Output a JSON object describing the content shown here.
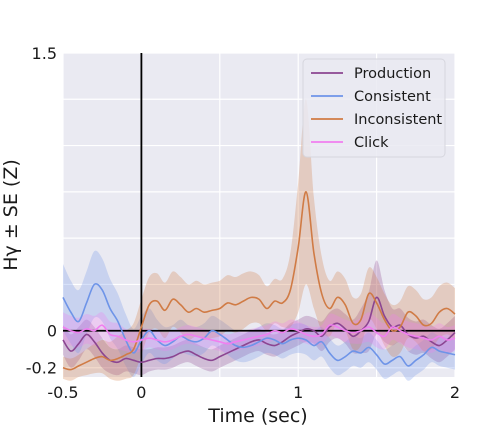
{
  "chart_data": {
    "type": "line",
    "xlabel": "Time (sec)",
    "ylabel": "Hγ ± SE (Z)",
    "xlim": [
      -0.5,
      2
    ],
    "ylim": [
      -0.25,
      1.5
    ],
    "xticks": [
      {
        "value": -0.5,
        "label": "-0.5"
      },
      {
        "value": 0,
        "label": "0"
      },
      {
        "value": 1,
        "label": "1"
      },
      {
        "value": 2,
        "label": "2"
      }
    ],
    "yticks": [
      {
        "value": 1.5,
        "label": "1.5"
      },
      {
        "value": 0,
        "label": "0"
      },
      {
        "value": -0.2,
        "label": "-0.2"
      }
    ],
    "grid": true,
    "legend_position": "top-right",
    "vlines": [
      0
    ],
    "hlines": [
      0
    ],
    "x": [
      -0.5,
      -0.45,
      -0.4,
      -0.35,
      -0.3,
      -0.25,
      -0.2,
      -0.15,
      -0.1,
      -0.05,
      0,
      0.05,
      0.1,
      0.15,
      0.2,
      0.25,
      0.3,
      0.35,
      0.4,
      0.45,
      0.5,
      0.55,
      0.6,
      0.65,
      0.7,
      0.75,
      0.8,
      0.85,
      0.9,
      0.95,
      1,
      1.05,
      1.1,
      1.15,
      1.2,
      1.25,
      1.3,
      1.35,
      1.4,
      1.45,
      1.5,
      1.55,
      1.6,
      1.65,
      1.7,
      1.75,
      1.8,
      1.85,
      1.9,
      1.95,
      2
    ],
    "series": [
      {
        "name": "Production",
        "color": "#8b4591",
        "values": [
          -0.05,
          -0.11,
          -0.07,
          -0.02,
          -0.06,
          -0.12,
          -0.16,
          -0.17,
          -0.15,
          -0.16,
          -0.17,
          -0.16,
          -0.15,
          -0.15,
          -0.14,
          -0.12,
          -0.11,
          -0.13,
          -0.15,
          -0.16,
          -0.14,
          -0.12,
          -0.1,
          -0.08,
          -0.06,
          -0.05,
          -0.07,
          -0.08,
          -0.06,
          -0.03,
          -0.01,
          0.01,
          0.0,
          -0.03,
          0.02,
          0.04,
          0.01,
          -0.03,
          0.0,
          0.05,
          0.18,
          0.08,
          0.02,
          0.03,
          -0.02,
          -0.04,
          -0.03,
          -0.06,
          -0.08,
          -0.05,
          -0.01
        ],
        "band": [
          0.08,
          0.09,
          0.09,
          0.08,
          0.08,
          0.08,
          0.07,
          0.07,
          0.07,
          0.07,
          0.07,
          0.06,
          0.06,
          0.06,
          0.06,
          0.06,
          0.06,
          0.06,
          0.06,
          0.06,
          0.06,
          0.06,
          0.06,
          0.06,
          0.06,
          0.06,
          0.06,
          0.06,
          0.06,
          0.07,
          0.07,
          0.07,
          0.07,
          0.08,
          0.08,
          0.08,
          0.08,
          0.09,
          0.12,
          0.16,
          0.2,
          0.14,
          0.1,
          0.09,
          0.09,
          0.09,
          0.09,
          0.09,
          0.09,
          0.09,
          0.09
        ]
      },
      {
        "name": "Consistent",
        "color": "#6e94e8",
        "values": [
          0.18,
          0.1,
          0.05,
          0.15,
          0.25,
          0.22,
          0.12,
          0.05,
          -0.05,
          -0.12,
          -0.05,
          0.0,
          -0.05,
          -0.08,
          -0.06,
          -0.03,
          -0.05,
          -0.06,
          -0.04,
          0.0,
          -0.02,
          -0.05,
          -0.08,
          -0.09,
          -0.08,
          -0.06,
          -0.04,
          -0.05,
          -0.07,
          -0.05,
          -0.04,
          -0.05,
          -0.08,
          -0.06,
          -0.12,
          -0.16,
          -0.14,
          -0.11,
          -0.12,
          -0.09,
          -0.13,
          -0.18,
          -0.16,
          -0.14,
          -0.19,
          -0.16,
          -0.13,
          -0.09,
          -0.11,
          -0.12,
          -0.13
        ],
        "band": [
          0.18,
          0.17,
          0.17,
          0.17,
          0.18,
          0.17,
          0.16,
          0.15,
          0.14,
          0.13,
          0.13,
          0.12,
          0.11,
          0.1,
          0.09,
          0.09,
          0.08,
          0.08,
          0.08,
          0.08,
          0.08,
          0.08,
          0.08,
          0.08,
          0.08,
          0.08,
          0.08,
          0.08,
          0.08,
          0.08,
          0.08,
          0.08,
          0.08,
          0.08,
          0.08,
          0.08,
          0.08,
          0.08,
          0.08,
          0.08,
          0.08,
          0.08,
          0.08,
          0.08,
          0.08,
          0.08,
          0.08,
          0.08,
          0.08,
          0.08,
          0.08
        ]
      },
      {
        "name": "Inconsistent",
        "color": "#d07b45",
        "values": [
          -0.2,
          -0.21,
          -0.19,
          -0.17,
          -0.15,
          -0.14,
          -0.16,
          -0.15,
          -0.13,
          -0.1,
          0.02,
          0.14,
          0.16,
          0.11,
          0.17,
          0.14,
          0.1,
          0.12,
          0.1,
          0.11,
          0.12,
          0.15,
          0.14,
          0.16,
          0.18,
          0.17,
          0.12,
          0.16,
          0.15,
          0.22,
          0.45,
          0.75,
          0.42,
          0.2,
          0.12,
          0.18,
          0.14,
          0.04,
          0.06,
          0.2,
          0.15,
          0.06,
          0.0,
          0.02,
          0.1,
          0.08,
          0.03,
          0.04,
          0.1,
          0.12,
          0.09
        ],
        "band": [
          0.06,
          0.06,
          0.06,
          0.07,
          0.08,
          0.09,
          0.1,
          0.12,
          0.13,
          0.14,
          0.15,
          0.15,
          0.15,
          0.15,
          0.15,
          0.15,
          0.15,
          0.15,
          0.15,
          0.15,
          0.15,
          0.15,
          0.15,
          0.15,
          0.14,
          0.13,
          0.12,
          0.12,
          0.13,
          0.2,
          0.35,
          0.5,
          0.3,
          0.2,
          0.15,
          0.14,
          0.14,
          0.14,
          0.14,
          0.14,
          0.14,
          0.14,
          0.14,
          0.14,
          0.14,
          0.14,
          0.14,
          0.14,
          0.14,
          0.14,
          0.14
        ]
      },
      {
        "name": "Click",
        "color": "#f07ff0",
        "values": [
          0.02,
          0.0,
          -0.01,
          0.01,
          0.0,
          0.03,
          -0.02,
          -0.03,
          -0.05,
          -0.06,
          -0.05,
          -0.04,
          -0.05,
          -0.06,
          -0.05,
          -0.03,
          -0.02,
          -0.03,
          -0.04,
          -0.05,
          -0.06,
          -0.07,
          -0.06,
          -0.05,
          -0.04,
          -0.03,
          -0.02,
          0.0,
          -0.01,
          0.01,
          0.0,
          -0.02,
          -0.03,
          -0.02,
          0.03,
          0.02,
          0.0,
          -0.01,
          0.0,
          0.02,
          -0.01,
          -0.03,
          0.02,
          0.0,
          -0.02,
          -0.03,
          -0.04,
          -0.05,
          -0.03,
          -0.05,
          -0.04
        ],
        "band": [
          0.08,
          0.08,
          0.08,
          0.08,
          0.08,
          0.07,
          0.07,
          0.07,
          0.06,
          0.06,
          0.06,
          0.05,
          0.05,
          0.05,
          0.05,
          0.05,
          0.05,
          0.05,
          0.05,
          0.05,
          0.05,
          0.05,
          0.05,
          0.05,
          0.05,
          0.05,
          0.05,
          0.05,
          0.05,
          0.05,
          0.05,
          0.05,
          0.05,
          0.05,
          0.06,
          0.06,
          0.06,
          0.06,
          0.07,
          0.08,
          0.08,
          0.07,
          0.07,
          0.07,
          0.07,
          0.07,
          0.07,
          0.07,
          0.07,
          0.07,
          0.07
        ]
      }
    ]
  }
}
